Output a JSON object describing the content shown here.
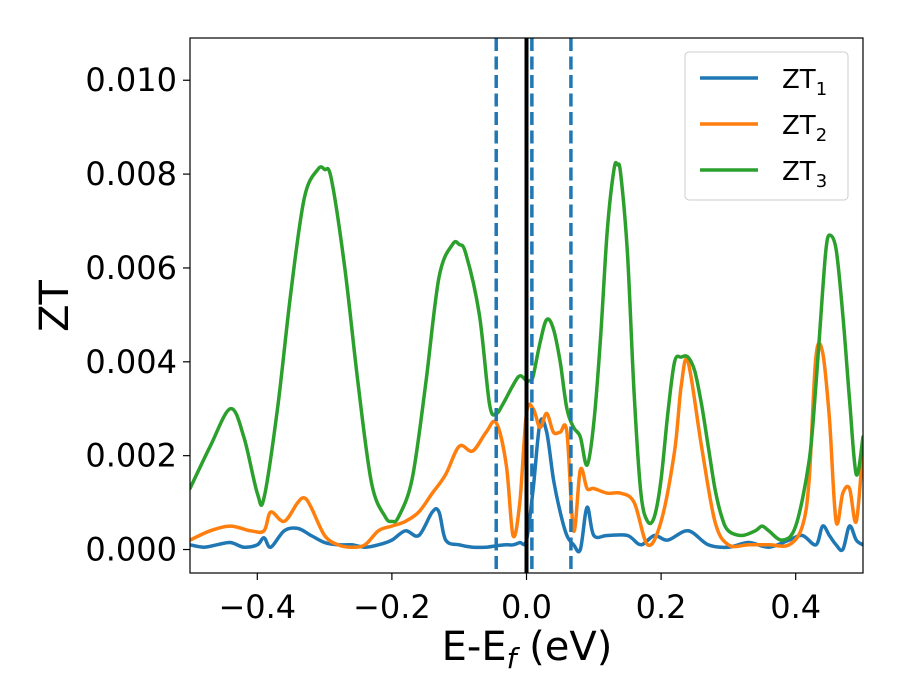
{
  "chart_data": {
    "type": "line",
    "xlabel": "E-E",
    "xlabel_sub": "f",
    "xlabel_unit": " (eV)",
    "ylabel": "ZT",
    "xlim": [
      -0.5,
      0.5
    ],
    "ylim": [
      -0.0005,
      0.0109
    ],
    "xticks": [
      -0.4,
      -0.2,
      0.0,
      0.2,
      0.4
    ],
    "xtick_labels": [
      "−0.4",
      "−0.2",
      "0.0",
      "0.2",
      "0.4"
    ],
    "yticks": [
      0.0,
      0.002,
      0.004,
      0.006,
      0.008,
      0.01
    ],
    "ytick_labels": [
      "0.000",
      "0.002",
      "0.004",
      "0.006",
      "0.008",
      "0.010"
    ],
    "grid": false,
    "legend_position": "top-right",
    "vlines": [
      {
        "x": 0.0,
        "style": "solid",
        "color": "#000000"
      },
      {
        "x": -0.045,
        "style": "dashed",
        "color": "#1f77b4"
      },
      {
        "x": 0.008,
        "style": "dashed",
        "color": "#1f77b4"
      },
      {
        "x": 0.066,
        "style": "dashed",
        "color": "#1f77b4"
      }
    ],
    "series": [
      {
        "name": "ZT",
        "sub": "1",
        "color": "#1f77b4",
        "x": [
          -0.5,
          -0.48,
          -0.46,
          -0.44,
          -0.42,
          -0.4,
          -0.39,
          -0.38,
          -0.36,
          -0.34,
          -0.32,
          -0.3,
          -0.28,
          -0.26,
          -0.24,
          -0.22,
          -0.2,
          -0.18,
          -0.16,
          -0.14,
          -0.13,
          -0.12,
          -0.1,
          -0.08,
          -0.06,
          -0.045,
          -0.03,
          -0.02,
          -0.01,
          0.0,
          0.01,
          0.02,
          0.03,
          0.04,
          0.05,
          0.06,
          0.07,
          0.08,
          0.09,
          0.1,
          0.12,
          0.15,
          0.17,
          0.19,
          0.21,
          0.24,
          0.27,
          0.3,
          0.33,
          0.36,
          0.39,
          0.41,
          0.43,
          0.44,
          0.45,
          0.46,
          0.47,
          0.48,
          0.49,
          0.5
        ],
        "y": [
          0.0001,
          5e-05,
          0.0001,
          0.00015,
          5e-05,
          0.0001,
          0.00025,
          5e-05,
          0.0004,
          0.00045,
          0.0003,
          0.00015,
          0.0001,
          0.0001,
          5e-05,
          0.0001,
          0.0002,
          0.0004,
          0.0003,
          0.0008,
          0.0008,
          0.0002,
          0.0001,
          5e-05,
          5e-05,
          8e-05,
          0.0001,
          0.0001,
          0.00015,
          0.0002,
          0.0013,
          0.0027,
          0.0025,
          0.0015,
          0.0008,
          0.0003,
          0.0001,
          0.0,
          0.0009,
          0.0003,
          0.0003,
          0.0003,
          0.0001,
          0.0003,
          0.0002,
          0.0004,
          0.0001,
          5e-05,
          0.00015,
          5e-05,
          0.0002,
          0.0003,
          0.0001,
          0.0005,
          0.0003,
          0.0001,
          0.0,
          0.0005,
          0.0002,
          0.0001
        ]
      },
      {
        "name": "ZT",
        "sub": "2",
        "color": "#ff7f0e",
        "x": [
          -0.5,
          -0.47,
          -0.44,
          -0.41,
          -0.39,
          -0.38,
          -0.36,
          -0.34,
          -0.33,
          -0.32,
          -0.3,
          -0.28,
          -0.26,
          -0.24,
          -0.22,
          -0.2,
          -0.18,
          -0.16,
          -0.14,
          -0.12,
          -0.1,
          -0.08,
          -0.06,
          -0.045,
          -0.03,
          -0.02,
          -0.01,
          0.0,
          0.01,
          0.02,
          0.03,
          0.04,
          0.05,
          0.06,
          0.07,
          0.08,
          0.09,
          0.1,
          0.12,
          0.14,
          0.16,
          0.18,
          0.2,
          0.22,
          0.23,
          0.24,
          0.26,
          0.28,
          0.3,
          0.33,
          0.36,
          0.39,
          0.41,
          0.42,
          0.43,
          0.44,
          0.45,
          0.46,
          0.47,
          0.48,
          0.49,
          0.5
        ],
        "y": [
          0.0002,
          0.0004,
          0.0005,
          0.0004,
          0.0004,
          0.0008,
          0.0006,
          0.001,
          0.0011,
          0.0009,
          0.0003,
          0.0001,
          5e-05,
          0.0001,
          0.0004,
          0.0005,
          0.0006,
          0.0008,
          0.0012,
          0.0016,
          0.0022,
          0.0021,
          0.0025,
          0.0027,
          0.0018,
          0.0003,
          0.001,
          0.0029,
          0.003,
          0.0026,
          0.0029,
          0.0025,
          0.0025,
          0.0025,
          0.0004,
          0.0017,
          0.0013,
          0.0013,
          0.0012,
          0.0012,
          0.001,
          0.0001,
          0.0006,
          0.0021,
          0.0035,
          0.004,
          0.0022,
          0.0006,
          0.0001,
          0.0001,
          0.0001,
          0.0001,
          0.0005,
          0.0015,
          0.0041,
          0.0042,
          0.0028,
          0.0006,
          0.0012,
          0.0013,
          0.0006,
          0.0022
        ]
      },
      {
        "name": "ZT",
        "sub": "3",
        "color": "#2ca02c",
        "x": [
          -0.5,
          -0.47,
          -0.44,
          -0.42,
          -0.4,
          -0.39,
          -0.37,
          -0.35,
          -0.33,
          -0.31,
          -0.3,
          -0.29,
          -0.27,
          -0.25,
          -0.23,
          -0.21,
          -0.2,
          -0.19,
          -0.17,
          -0.15,
          -0.13,
          -0.11,
          -0.1,
          -0.09,
          -0.07,
          -0.055,
          -0.045,
          -0.035,
          -0.02,
          -0.01,
          0.0,
          0.005,
          0.01,
          0.02,
          0.03,
          0.04,
          0.05,
          0.06,
          0.07,
          0.08,
          0.09,
          0.1,
          0.11,
          0.12,
          0.13,
          0.135,
          0.14,
          0.15,
          0.16,
          0.17,
          0.18,
          0.19,
          0.2,
          0.21,
          0.22,
          0.23,
          0.24,
          0.25,
          0.26,
          0.27,
          0.28,
          0.29,
          0.3,
          0.32,
          0.34,
          0.35,
          0.36,
          0.38,
          0.4,
          0.42,
          0.43,
          0.44,
          0.445,
          0.45,
          0.46,
          0.47,
          0.48,
          0.49,
          0.5
        ],
        "y": [
          0.0013,
          0.0022,
          0.003,
          0.0024,
          0.0012,
          0.0011,
          0.003,
          0.0055,
          0.0075,
          0.0081,
          0.0081,
          0.0079,
          0.006,
          0.0035,
          0.0014,
          0.0007,
          0.0006,
          0.0007,
          0.0015,
          0.0035,
          0.0058,
          0.0065,
          0.0065,
          0.0063,
          0.005,
          0.0031,
          0.0029,
          0.0031,
          0.0035,
          0.0037,
          0.0036,
          0.0036,
          0.0037,
          0.0044,
          0.0049,
          0.0047,
          0.004,
          0.003,
          0.0026,
          0.0024,
          0.0018,
          0.0027,
          0.0045,
          0.0068,
          0.0081,
          0.0082,
          0.008,
          0.0063,
          0.0033,
          0.0012,
          0.0006,
          0.0007,
          0.0015,
          0.0029,
          0.004,
          0.0041,
          0.0041,
          0.0038,
          0.0031,
          0.0022,
          0.0013,
          0.0007,
          0.0004,
          0.0003,
          0.0004,
          0.0005,
          0.0004,
          0.0002,
          0.0005,
          0.0019,
          0.0035,
          0.0055,
          0.0064,
          0.0067,
          0.0064,
          0.005,
          0.0032,
          0.0016,
          0.0024
        ]
      }
    ]
  }
}
